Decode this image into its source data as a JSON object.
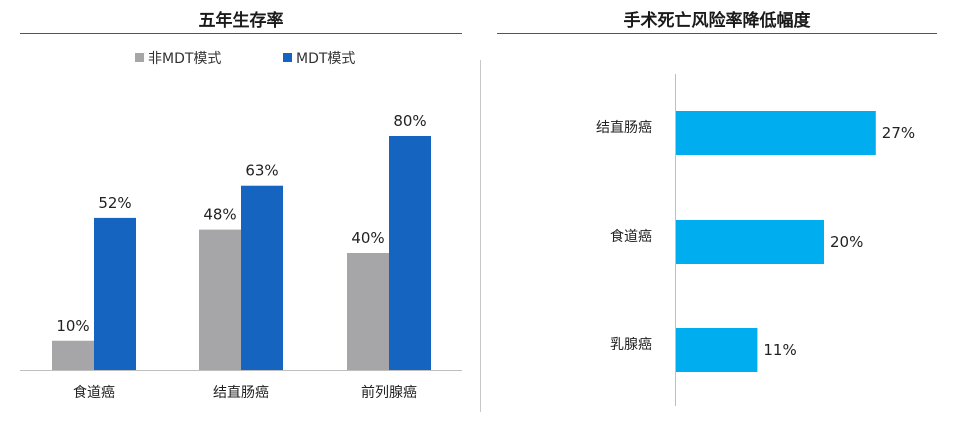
{
  "chart_data": [
    {
      "type": "bar",
      "title": "五年生存率",
      "categories": [
        "食道癌",
        "结直肠癌",
        "前列腺癌"
      ],
      "series": [
        {
          "name": "非MDT模式",
          "values": [
            10,
            48,
            40
          ],
          "labels": [
            "10%",
            "48%",
            "40%"
          ],
          "color": "#a6a6a8"
        },
        {
          "name": "MDT模式",
          "values": [
            52,
            63,
            80
          ],
          "labels": [
            "52%",
            "63%",
            "80%"
          ],
          "color": "#1565c0"
        }
      ],
      "ylim": [
        0,
        90
      ],
      "grid": false,
      "legend": "top"
    },
    {
      "type": "bar",
      "orientation": "horizontal",
      "title": "手术死亡风险率降低幅度",
      "categories": [
        "结直肠癌",
        "食道癌",
        "乳腺癌"
      ],
      "values": [
        27,
        20,
        11
      ],
      "labels": [
        "27%",
        "20%",
        "11%"
      ],
      "color": "#00aeef",
      "xlim": [
        0,
        35
      ],
      "grid": false
    }
  ]
}
